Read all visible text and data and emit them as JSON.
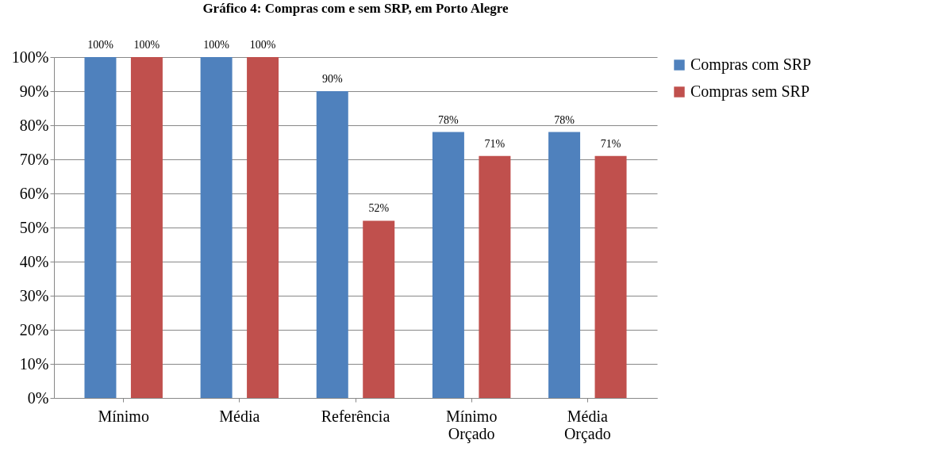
{
  "chart_data": {
    "type": "bar",
    "title": "Gráfico 4: Compras com e sem SRP, em Porto Alegre",
    "categories": [
      "Mínimo",
      "Média",
      "Referência",
      "Mínimo Orçado",
      "Média Orçado"
    ],
    "series": [
      {
        "name": "Compras com SRP",
        "color": "#4f81bd",
        "values": [
          100,
          100,
          90,
          78,
          78
        ],
        "value_labels": [
          "100%",
          "100%",
          "90%",
          "78%",
          "78%"
        ]
      },
      {
        "name": "Compras sem SRP",
        "color": "#c0504d",
        "values": [
          100,
          100,
          52,
          71,
          71
        ],
        "value_labels": [
          "100%",
          "100%",
          "52%",
          "71%",
          "71%"
        ]
      }
    ],
    "ylim": [
      0,
      100
    ],
    "yticks": [
      {
        "value": 0,
        "label": "0%"
      },
      {
        "value": 10,
        "label": "10%"
      },
      {
        "value": 20,
        "label": "20%"
      },
      {
        "value": 30,
        "label": "30%"
      },
      {
        "value": 40,
        "label": "40%"
      },
      {
        "value": 50,
        "label": "50%"
      },
      {
        "value": 60,
        "label": "60%"
      },
      {
        "value": 70,
        "label": "70%"
      },
      {
        "value": 80,
        "label": "80%"
      },
      {
        "value": 90,
        "label": "90%"
      },
      {
        "value": 100,
        "label": "100%"
      }
    ],
    "grid": "y",
    "legend": "right"
  }
}
